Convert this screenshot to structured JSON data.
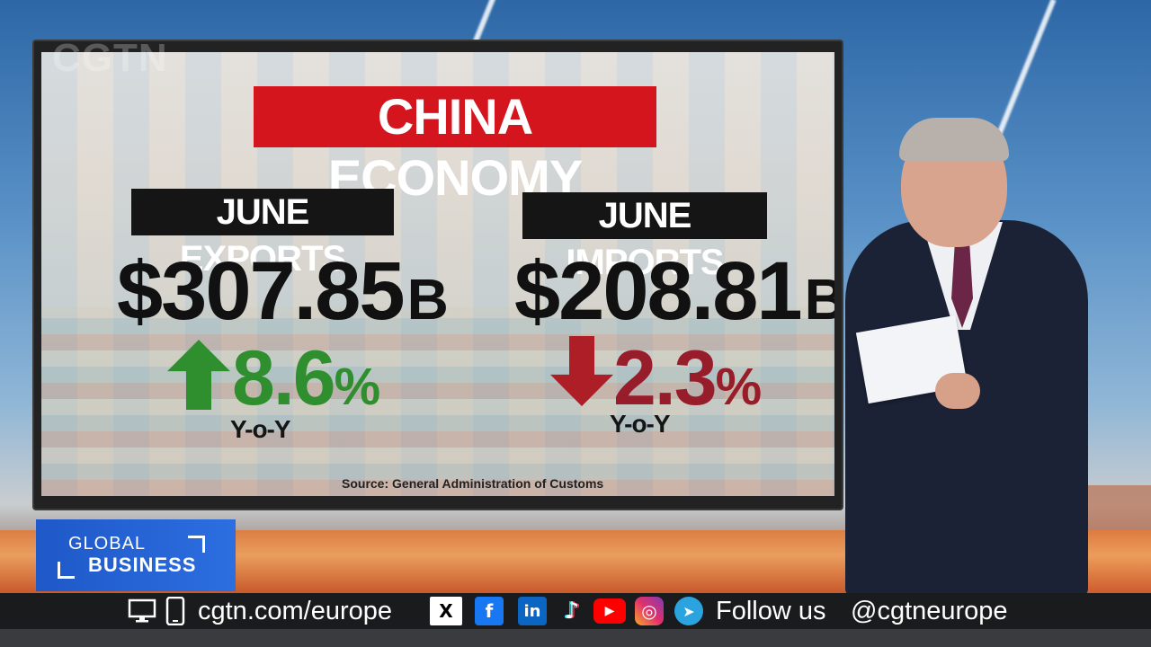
{
  "watermark": "CGTN",
  "panel": {
    "title": "CHINA ECONOMY",
    "exports": {
      "label": "JUNE EXPORTS",
      "amount": "$307.85",
      "unit": "B",
      "change": "8.6",
      "percent": "%",
      "direction": "up",
      "period": "Y-o-Y",
      "color": "#2f8f2f"
    },
    "imports": {
      "label": "JUNE IMPORTS",
      "amount": "$208.81",
      "unit": "B",
      "change": "2.3",
      "percent": "%",
      "direction": "down",
      "period": "Y-o-Y",
      "color": "#981d2a"
    },
    "source": "Source: General Administration of Customs",
    "title_color": "#d5151d"
  },
  "show_tag": {
    "line1": "GLOBAL",
    "line2": "BUSINESS",
    "color": "#1f58c8"
  },
  "footer": {
    "website": "cgtn.com/europe",
    "follow": "Follow us",
    "handle": "@cgtneurope",
    "icons": [
      "desktop-icon",
      "mobile-icon",
      "x-icon",
      "facebook-icon",
      "linkedin-icon",
      "tiktok-icon",
      "youtube-icon",
      "instagram-icon",
      "telegram-icon"
    ],
    "icon_glyphs": {
      "x": "X",
      "facebook": "f",
      "linkedin": "in",
      "tiktok": "♪",
      "youtube": "▶",
      "instagram": "◎",
      "telegram": "➤"
    }
  }
}
